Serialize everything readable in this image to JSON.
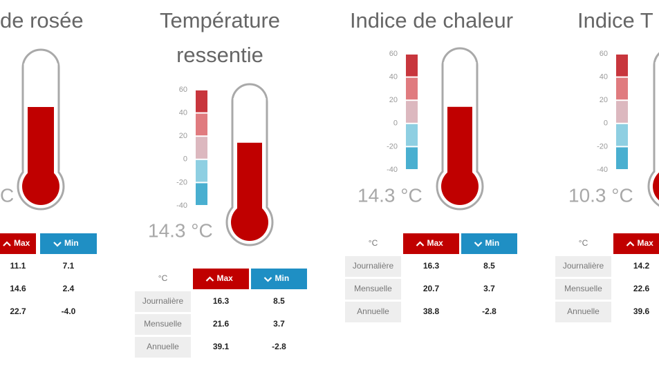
{
  "panels": [
    {
      "title": [
        "de rosée"
      ],
      "reading": "C",
      "table": {
        "headers": [
          "Max",
          "Min"
        ],
        "rows": [
          [
            "11.1",
            "7.1"
          ],
          [
            "14.6",
            "2.4"
          ],
          [
            "22.7",
            "-4.0"
          ]
        ]
      }
    },
    {
      "title": [
        "Température",
        "ressentie"
      ],
      "scale": [
        60,
        40,
        20,
        0,
        -20,
        -40
      ],
      "reading": {
        "value": 14.3,
        "label": "14.3 °C"
      },
      "table": {
        "headers": [
          "°C",
          "Max",
          "Min"
        ],
        "rows": [
          [
            "Journalière",
            "16.3",
            "8.5"
          ],
          [
            "Mensuelle",
            "21.6",
            "3.7"
          ],
          [
            "Annuelle",
            "39.1",
            "-2.8"
          ]
        ]
      }
    },
    {
      "title": [
        "Indice de chaleur"
      ],
      "scale": [
        60,
        40,
        20,
        0,
        -20,
        -40
      ],
      "reading": {
        "value": 14.3,
        "label": "14.3 °C"
      },
      "table": {
        "headers": [
          "°C",
          "Max",
          "Min"
        ],
        "rows": [
          [
            "Journalière",
            "16.3",
            "8.5"
          ],
          [
            "Mensuelle",
            "20.7",
            "3.7"
          ],
          [
            "Annuelle",
            "38.8",
            "-2.8"
          ]
        ]
      }
    },
    {
      "title": [
        "Indice T"
      ],
      "scale": [
        60,
        40,
        20,
        0,
        -20,
        -40
      ],
      "reading": {
        "value": 10.3,
        "label": "10.3 °C"
      },
      "table": {
        "headers": [
          "°C",
          "Max"
        ],
        "rows": [
          [
            "Journalière",
            "14.2"
          ],
          [
            "Mensuelle",
            "22.6"
          ],
          [
            "Annuelle",
            "39.6"
          ]
        ]
      }
    }
  ]
}
